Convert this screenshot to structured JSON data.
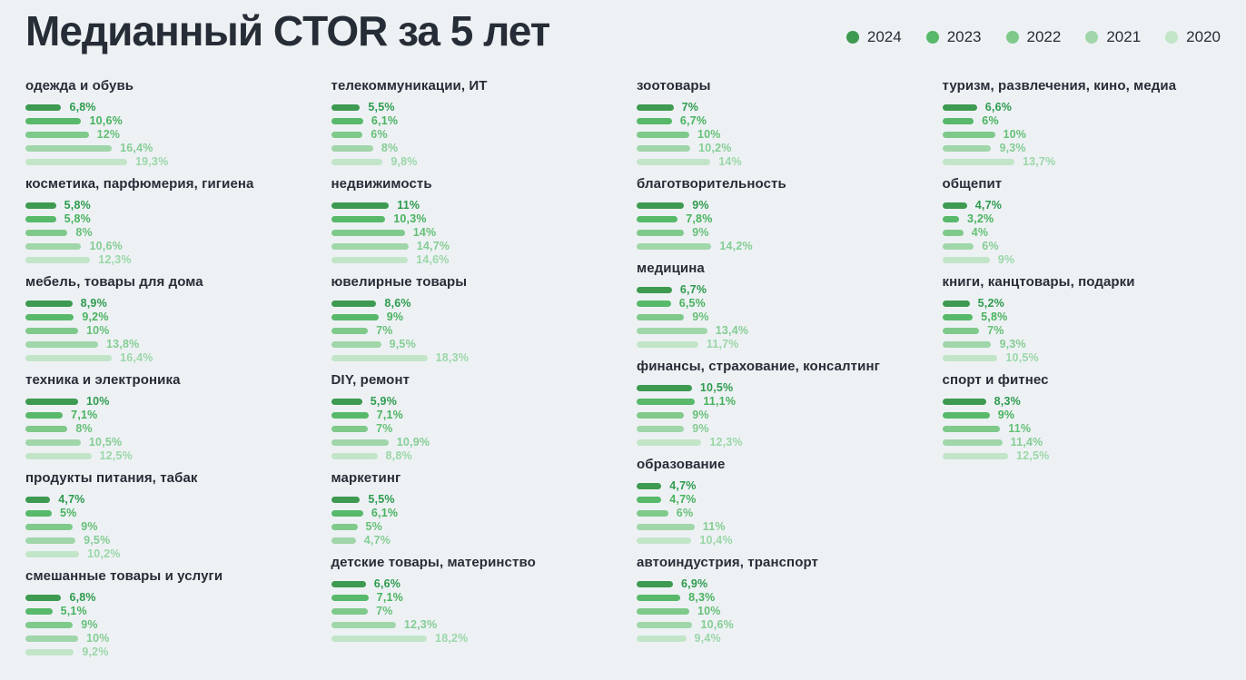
{
  "page": {
    "background": "#edf1f4"
  },
  "header": {
    "title": "Медианный CTOR за 5 лет"
  },
  "legend": {
    "items": [
      "2024",
      "2023",
      "2022",
      "2021",
      "2020"
    ]
  },
  "chart_data": {
    "type": "bar",
    "orientation": "horizontal",
    "title": "Медианный CTOR за 5 лет",
    "unit": "%",
    "value_axis": {
      "min": 0,
      "max_visible_value": 19.3,
      "gridlines": false,
      "ticks_shown": false
    },
    "legend_position": "top-right",
    "years": [
      {
        "year": "2024",
        "bar_color": "#3d9a50",
        "label_color": "#2e9b4e"
      },
      {
        "year": "2023",
        "bar_color": "#57b969",
        "label_color": "#49b25e"
      },
      {
        "year": "2022",
        "bar_color": "#7fc98b",
        "label_color": "#66c077"
      },
      {
        "year": "2021",
        "bar_color": "#a0d6a9",
        "label_color": "#85cd94"
      },
      {
        "year": "2020",
        "bar_color": "#c2e5c8",
        "label_color": "#9bd7a8"
      }
    ],
    "columns": [
      {
        "groups": [
          {
            "category": "одежда и обувь",
            "bars": [
              {
                "year": "2024",
                "value": 6.8,
                "label": "6,8%"
              },
              {
                "year": "2023",
                "value": 10.6,
                "label": "10,6%"
              },
              {
                "year": "2022",
                "value": 12,
                "label": "12%"
              },
              {
                "year": "2021",
                "value": 16.4,
                "label": "16,4%"
              },
              {
                "year": "2020",
                "value": 19.3,
                "label": "19,3%"
              }
            ]
          },
          {
            "category": "косметика, парфюмерия, гигиена",
            "bars": [
              {
                "year": "2024",
                "value": 5.8,
                "label": "5,8%"
              },
              {
                "year": "2023",
                "value": 5.8,
                "label": "5,8%"
              },
              {
                "year": "2022",
                "value": 8,
                "label": "8%"
              },
              {
                "year": "2021",
                "value": 10.6,
                "label": "10,6%"
              },
              {
                "year": "2020",
                "value": 12.3,
                "label": "12,3%"
              }
            ]
          },
          {
            "category": "мебель, товары для дома",
            "bars": [
              {
                "year": "2024",
                "value": 8.9,
                "label": "8,9%"
              },
              {
                "year": "2023",
                "value": 9.2,
                "label": "9,2%"
              },
              {
                "year": "2022",
                "value": 10,
                "label": "10%"
              },
              {
                "year": "2021",
                "value": 13.8,
                "label": "13,8%"
              },
              {
                "year": "2020",
                "value": 16.4,
                "label": "16,4%"
              }
            ]
          },
          {
            "category": "техника и электроника",
            "bars": [
              {
                "year": "2024",
                "value": 10,
                "label": "10%"
              },
              {
                "year": "2023",
                "value": 7.1,
                "label": "7,1%"
              },
              {
                "year": "2022",
                "value": 8,
                "label": "8%"
              },
              {
                "year": "2021",
                "value": 10.5,
                "label": "10,5%"
              },
              {
                "year": "2020",
                "value": 12.5,
                "label": "12,5%"
              }
            ]
          },
          {
            "category": "продукты питания, табак",
            "bars": [
              {
                "year": "2024",
                "value": 4.7,
                "label": "4,7%"
              },
              {
                "year": "2023",
                "value": 5,
                "label": "5%"
              },
              {
                "year": "2022",
                "value": 9,
                "label": "9%"
              },
              {
                "year": "2021",
                "value": 9.5,
                "label": "9,5%"
              },
              {
                "year": "2020",
                "value": 10.2,
                "label": "10,2%"
              }
            ]
          },
          {
            "category": "смешанные товары и услуги",
            "bars": [
              {
                "year": "2024",
                "value": 6.8,
                "label": "6,8%"
              },
              {
                "year": "2023",
                "value": 5.1,
                "label": "5,1%"
              },
              {
                "year": "2022",
                "value": 9,
                "label": "9%"
              },
              {
                "year": "2021",
                "value": 10,
                "label": "10%"
              },
              {
                "year": "2020",
                "value": 9.2,
                "label": "9,2%"
              }
            ]
          }
        ]
      },
      {
        "groups": [
          {
            "category": "телекоммуникации, ИТ",
            "bars": [
              {
                "year": "2024",
                "value": 5.5,
                "label": "5,5%"
              },
              {
                "year": "2023",
                "value": 6.1,
                "label": "6,1%"
              },
              {
                "year": "2022",
                "value": 6,
                "label": "6%"
              },
              {
                "year": "2021",
                "value": 8,
                "label": "8%"
              },
              {
                "year": "2020",
                "value": 9.8,
                "label": "9,8%"
              }
            ]
          },
          {
            "category": "недвижимость",
            "bars": [
              {
                "year": "2024",
                "value": 11,
                "label": "11%"
              },
              {
                "year": "2023",
                "value": 10.3,
                "label": "10,3%"
              },
              {
                "year": "2022",
                "value": 14,
                "label": "14%"
              },
              {
                "year": "2021",
                "value": 14.7,
                "label": "14,7%"
              },
              {
                "year": "2020",
                "value": 14.6,
                "label": "14,6%"
              }
            ]
          },
          {
            "category": "ювелирные товары",
            "bars": [
              {
                "year": "2024",
                "value": 8.6,
                "label": "8,6%"
              },
              {
                "year": "2023",
                "value": 9,
                "label": "9%"
              },
              {
                "year": "2022",
                "value": 7,
                "label": "7%"
              },
              {
                "year": "2021",
                "value": 9.5,
                "label": "9,5%"
              },
              {
                "year": "2020",
                "value": 18.3,
                "label": "18,3%"
              }
            ]
          },
          {
            "category": "DIY, ремонт",
            "bars": [
              {
                "year": "2024",
                "value": 5.9,
                "label": "5,9%"
              },
              {
                "year": "2023",
                "value": 7.1,
                "label": "7,1%"
              },
              {
                "year": "2022",
                "value": 7,
                "label": "7%"
              },
              {
                "year": "2021",
                "value": 10.9,
                "label": "10,9%"
              },
              {
                "year": "2020",
                "value": 8.8,
                "label": "8,8%"
              }
            ]
          },
          {
            "category": "маркетинг",
            "bars": [
              {
                "year": "2024",
                "value": 5.5,
                "label": "5,5%"
              },
              {
                "year": "2023",
                "value": 6.1,
                "label": "6,1%"
              },
              {
                "year": "2022",
                "value": 5,
                "label": "5%"
              },
              {
                "year": "2021",
                "value": 4.7,
                "label": "4,7%"
              }
            ]
          },
          {
            "category": "детские товары, материнство",
            "bars": [
              {
                "year": "2024",
                "value": 6.6,
                "label": "6,6%"
              },
              {
                "year": "2023",
                "value": 7.1,
                "label": "7,1%"
              },
              {
                "year": "2022",
                "value": 7,
                "label": "7%"
              },
              {
                "year": "2021",
                "value": 12.3,
                "label": "12,3%"
              },
              {
                "year": "2020",
                "value": 18.2,
                "label": "18,2%"
              }
            ]
          }
        ]
      },
      {
        "groups": [
          {
            "category": "зоотовары",
            "bars": [
              {
                "year": "2024",
                "value": 7,
                "label": "7%"
              },
              {
                "year": "2023",
                "value": 6.7,
                "label": "6,7%"
              },
              {
                "year": "2022",
                "value": 10,
                "label": "10%"
              },
              {
                "year": "2021",
                "value": 10.2,
                "label": "10,2%"
              },
              {
                "year": "2020",
                "value": 14,
                "label": "14%"
              }
            ]
          },
          {
            "category": "благотворительность",
            "bars": [
              {
                "year": "2024",
                "value": 9,
                "label": "9%"
              },
              {
                "year": "2023",
                "value": 7.8,
                "label": "7,8%"
              },
              {
                "year": "2022",
                "value": 9,
                "label": "9%"
              },
              {
                "year": "2021",
                "value": 14.2,
                "label": "14,2%"
              }
            ]
          },
          {
            "category": "медицина",
            "bars": [
              {
                "year": "2024",
                "value": 6.7,
                "label": "6,7%"
              },
              {
                "year": "2023",
                "value": 6.5,
                "label": "6,5%"
              },
              {
                "year": "2022",
                "value": 9,
                "label": "9%"
              },
              {
                "year": "2021",
                "value": 13.4,
                "label": "13,4%"
              },
              {
                "year": "2020",
                "value": 11.7,
                "label": "11,7%"
              }
            ]
          },
          {
            "category": "финансы, страхование, консалтинг",
            "bars": [
              {
                "year": "2024",
                "value": 10.5,
                "label": "10,5%"
              },
              {
                "year": "2023",
                "value": 11.1,
                "label": "11,1%"
              },
              {
                "year": "2022",
                "value": 9,
                "label": "9%"
              },
              {
                "year": "2021",
                "value": 9,
                "label": "9%"
              },
              {
                "year": "2020",
                "value": 12.3,
                "label": "12,3%"
              }
            ]
          },
          {
            "category": "образование",
            "bars": [
              {
                "year": "2024",
                "value": 4.7,
                "label": "4,7%"
              },
              {
                "year": "2023",
                "value": 4.7,
                "label": "4,7%"
              },
              {
                "year": "2022",
                "value": 6,
                "label": "6%"
              },
              {
                "year": "2021",
                "value": 11,
                "label": "11%"
              },
              {
                "year": "2020",
                "value": 10.4,
                "label": "10,4%"
              }
            ]
          },
          {
            "category": "автоиндустрия, транспорт",
            "bars": [
              {
                "year": "2024",
                "value": 6.9,
                "label": "6,9%"
              },
              {
                "year": "2023",
                "value": 8.3,
                "label": "8,3%"
              },
              {
                "year": "2022",
                "value": 10,
                "label": "10%"
              },
              {
                "year": "2021",
                "value": 10.6,
                "label": "10,6%"
              },
              {
                "year": "2020",
                "value": 9.4,
                "label": "9,4%"
              }
            ]
          }
        ]
      },
      {
        "groups": [
          {
            "category": "туризм, развлечения, кино, медиа",
            "bars": [
              {
                "year": "2024",
                "value": 6.6,
                "label": "6,6%"
              },
              {
                "year": "2023",
                "value": 6,
                "label": "6%"
              },
              {
                "year": "2022",
                "value": 10,
                "label": "10%"
              },
              {
                "year": "2021",
                "value": 9.3,
                "label": "9,3%"
              },
              {
                "year": "2020",
                "value": 13.7,
                "label": "13,7%"
              }
            ]
          },
          {
            "category": "общепит",
            "bars": [
              {
                "year": "2024",
                "value": 4.7,
                "label": "4,7%"
              },
              {
                "year": "2023",
                "value": 3.2,
                "label": "3,2%"
              },
              {
                "year": "2022",
                "value": 4,
                "label": "4%"
              },
              {
                "year": "2021",
                "value": 6,
                "label": "6%"
              },
              {
                "year": "2020",
                "value": 9,
                "label": "9%"
              }
            ]
          },
          {
            "category": "книги, канцтовары, подарки",
            "bars": [
              {
                "year": "2024",
                "value": 5.2,
                "label": "5,2%"
              },
              {
                "year": "2023",
                "value": 5.8,
                "label": "5,8%"
              },
              {
                "year": "2022",
                "value": 7,
                "label": "7%"
              },
              {
                "year": "2021",
                "value": 9.3,
                "label": "9,3%"
              },
              {
                "year": "2020",
                "value": 10.5,
                "label": "10,5%"
              }
            ]
          },
          {
            "category": "спорт и фитнес",
            "bars": [
              {
                "year": "2024",
                "value": 8.3,
                "label": "8,3%"
              },
              {
                "year": "2023",
                "value": 9,
                "label": "9%"
              },
              {
                "year": "2022",
                "value": 11,
                "label": "11%"
              },
              {
                "year": "2021",
                "value": 11.4,
                "label": "11,4%"
              },
              {
                "year": "2020",
                "value": 12.5,
                "label": "12,5%"
              }
            ]
          }
        ]
      }
    ]
  }
}
